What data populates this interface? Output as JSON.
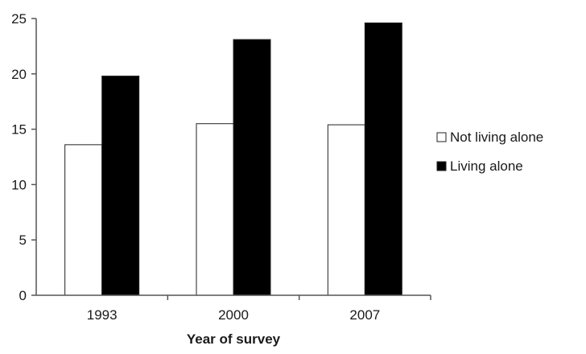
{
  "chart_data": {
    "type": "bar",
    "title": "",
    "xlabel": "Year of survey",
    "ylabel": "",
    "categories": [
      "1993",
      "2000",
      "2007"
    ],
    "series": [
      {
        "name": "Not living alone",
        "values": [
          13.6,
          15.5,
          15.4
        ],
        "color": "#ffffff"
      },
      {
        "name": "Living alone",
        "values": [
          19.8,
          23.1,
          24.6
        ],
        "color": "#000000"
      }
    ],
    "ylim": [
      0,
      25
    ],
    "yticks": [
      "0",
      "5",
      "10",
      "15",
      "20",
      "25"
    ],
    "grid": false,
    "legend_position": "right"
  }
}
